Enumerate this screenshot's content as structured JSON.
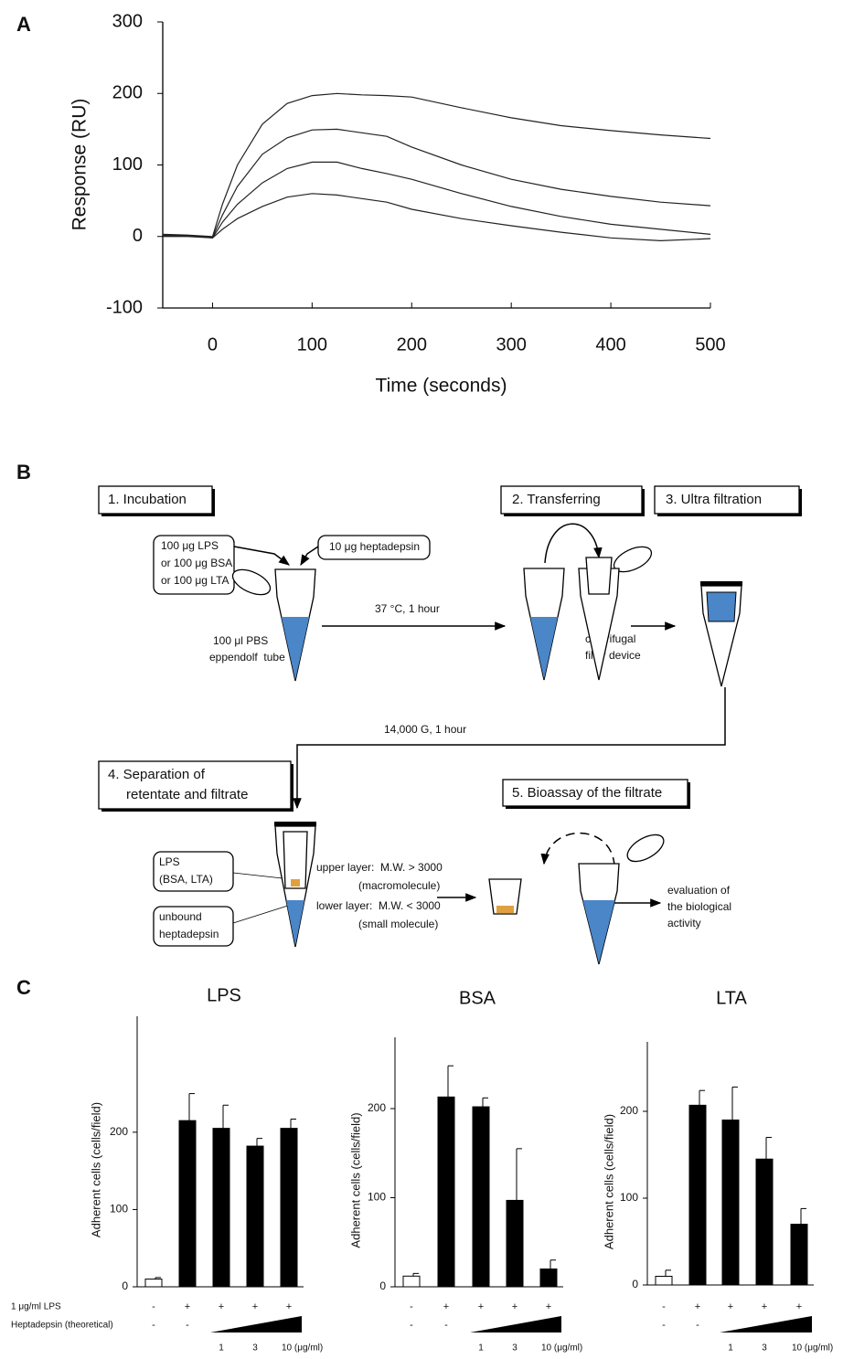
{
  "panel_labels": [
    "A",
    "B",
    "C"
  ],
  "chart_data": [
    {
      "type": "line",
      "xlabel": "Time (seconds)",
      "ylabel": "Response (RU)",
      "x": [
        -50,
        -25,
        0,
        10,
        25,
        50,
        75,
        100,
        125,
        150,
        175,
        200,
        250,
        300,
        350,
        400,
        450,
        500
      ],
      "series": [
        {
          "color": "#222222",
          "values": [
            3,
            2,
            0,
            45,
            100,
            157,
            186,
            197,
            200,
            198,
            197,
            195,
            180,
            166,
            155,
            148,
            142,
            137
          ]
        },
        {
          "color": "#222222",
          "values": [
            2,
            1,
            -1,
            30,
            70,
            115,
            138,
            149,
            150,
            145,
            140,
            125,
            100,
            80,
            66,
            56,
            48,
            43
          ]
        },
        {
          "color": "#222222",
          "values": [
            1,
            1,
            -2,
            20,
            45,
            75,
            95,
            104,
            104,
            95,
            88,
            80,
            60,
            42,
            28,
            17,
            10,
            3
          ]
        },
        {
          "color": "#222222",
          "values": [
            0,
            0,
            -2,
            10,
            25,
            42,
            55,
            60,
            58,
            53,
            48,
            38,
            25,
            15,
            6,
            -2,
            -6,
            -3
          ]
        }
      ],
      "xlim": [
        -50,
        500
      ],
      "ylim": [
        -100,
        300
      ],
      "xticks": [
        0,
        100,
        200,
        300,
        400,
        500
      ],
      "yticks": [
        -100,
        0,
        100,
        200,
        300
      ]
    },
    {
      "type": "bar",
      "title": "LPS",
      "ylabel": "Adherent cells (cells/field)",
      "values": [
        10,
        215,
        205,
        182,
        205
      ],
      "errors": [
        2,
        35,
        30,
        10,
        12
      ],
      "colors": [
        "#ffffff",
        "#000000",
        "#000000",
        "#000000",
        "#000000"
      ],
      "ylim": [
        0,
        350
      ],
      "yticks": [
        0,
        100,
        200
      ]
    },
    {
      "type": "bar",
      "title": "BSA",
      "ylabel": "Adherent cells (cells/field)",
      "values": [
        12,
        213,
        202,
        97,
        20
      ],
      "errors": [
        3,
        35,
        10,
        58,
        10
      ],
      "colors": [
        "#ffffff",
        "#000000",
        "#000000",
        "#000000",
        "#000000"
      ],
      "ylim": [
        0,
        280
      ],
      "yticks": [
        0,
        100,
        200
      ]
    },
    {
      "type": "bar",
      "title": "LTA",
      "ylabel": "Adherent cells (cells/field)",
      "values": [
        10,
        207,
        190,
        145,
        70
      ],
      "errors": [
        7,
        17,
        38,
        25,
        18
      ],
      "colors": [
        "#ffffff",
        "#000000",
        "#000000",
        "#000000",
        "#000000"
      ],
      "ylim": [
        0,
        280
      ],
      "yticks": [
        0,
        100,
        200
      ]
    }
  ],
  "treatments": {
    "rows": [
      {
        "label": "1 μg/ml LPS",
        "marks": [
          "-",
          "+",
          "+",
          "+",
          "+"
        ]
      },
      {
        "label": "Heptadepsin (theoretical)",
        "marks": [
          "-",
          "-"
        ]
      }
    ],
    "doses": [
      "1",
      "3",
      "10 (μg/ml)"
    ]
  },
  "diagram": {
    "steps": [
      [
        "1. Incubation"
      ],
      [
        "2. Transferring"
      ],
      [
        "3. Ultra filtration"
      ],
      [
        "4. Separation of",
        "retentate and filtrate"
      ],
      [
        "5. Bioassay of the filtrate"
      ]
    ],
    "samples": [
      "100 μg LPS",
      "or 100 μg BSA",
      "or 100 μg LTA"
    ],
    "compound": "10 μg heptadepsin",
    "tube": [
      "100 μl PBS",
      "eppendolf  tube"
    ],
    "incubation_condition": "37 °C, 1 hour",
    "filter_device": [
      "centrifugal",
      "filter device"
    ],
    "centrifugation": "14,000 G, 1 hour",
    "retentate": [
      "LPS",
      "(BSA, LTA)"
    ],
    "filtrate": [
      "unbound",
      "heptadepsin"
    ],
    "upper_layer": [
      "upper layer:  M.W. > 3000",
      "(macromolecule)"
    ],
    "lower_layer": [
      "lower layer:  M.W. < 3000",
      "(small molecule)"
    ],
    "evaluation": [
      "evaluation of",
      "the biological",
      "activity"
    ]
  }
}
